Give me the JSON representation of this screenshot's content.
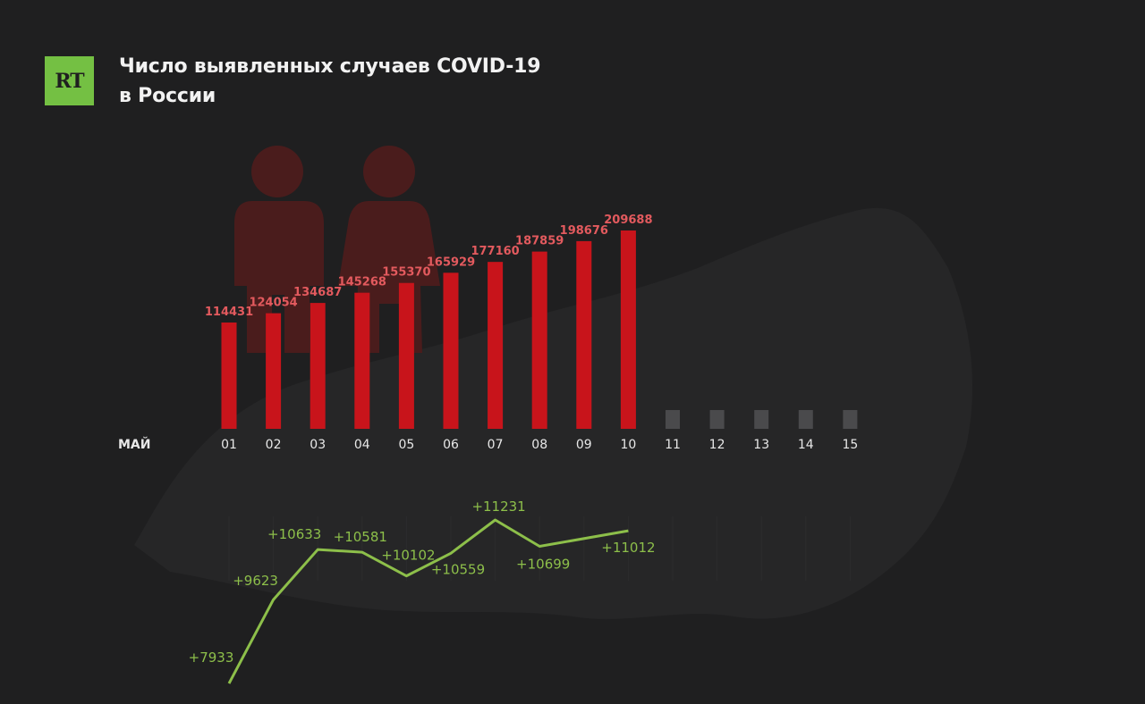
{
  "logo": {
    "text": "RT"
  },
  "title": {
    "line1": "Число выявленных случаев COVID-19",
    "line2": "в России"
  },
  "colors": {
    "background": "#1f1f20",
    "bar": "#c8141b",
    "bar_future": "#4a4a4c",
    "bar_label": "#e35a5e",
    "line": "#8dbf4a",
    "logo": "#74c043",
    "silhouette": "#4a1c1c",
    "map": "#2a2a2b"
  },
  "chart_data": [
    {
      "type": "bar",
      "month_label": "МАЙ",
      "categories": [
        "01",
        "02",
        "03",
        "04",
        "05",
        "06",
        "07",
        "08",
        "09",
        "10",
        "11",
        "12",
        "13",
        "14",
        "15"
      ],
      "values": [
        114431,
        124054,
        134687,
        145268,
        155370,
        165929,
        177160,
        187859,
        198676,
        209688,
        null,
        null,
        null,
        null,
        null
      ],
      "title": "Число выявленных случаев COVID-19 в России",
      "xlabel": "",
      "ylabel": ""
    },
    {
      "type": "line",
      "categories": [
        "01",
        "02",
        "03",
        "04",
        "05",
        "06",
        "07",
        "08",
        "09",
        "10"
      ],
      "values": [
        7933,
        9623,
        10633,
        10581,
        10102,
        10559,
        11231,
        10699,
        null,
        11012
      ],
      "labels": [
        "+7933",
        "+9623",
        "+10633",
        "+10581",
        "+10102",
        "+10559",
        "+11231",
        "+10699",
        "",
        "+11012"
      ]
    }
  ]
}
